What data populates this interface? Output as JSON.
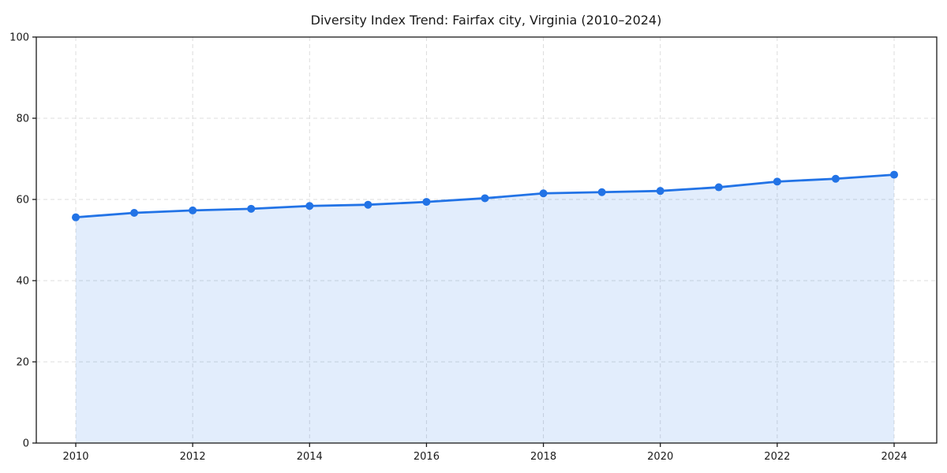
{
  "chart_data": {
    "type": "line",
    "title": "Diversity Index Trend: Fairfax city, Virginia (2010–2024)",
    "xlabel": "",
    "ylabel": "",
    "x": [
      2010,
      2011,
      2012,
      2013,
      2014,
      2015,
      2016,
      2017,
      2018,
      2019,
      2020,
      2021,
      2022,
      2023,
      2024
    ],
    "series": [
      {
        "name": "Diversity Index",
        "values": [
          55.6,
          56.7,
          57.3,
          57.7,
          58.4,
          58.7,
          59.4,
          60.3,
          61.5,
          61.8,
          62.1,
          63.0,
          64.4,
          65.1,
          66.1
        ]
      }
    ],
    "ylim": [
      0,
      100
    ],
    "yticks": [
      0,
      20,
      40,
      60,
      80,
      100
    ],
    "xticks": [
      2010,
      2012,
      2014,
      2016,
      2018,
      2020,
      2022,
      2024
    ],
    "grid": "dashed horizontal and vertical",
    "legend": "none",
    "area_fill_under_line": true,
    "markers": "filled circles",
    "colors": {
      "line": "#2273e6",
      "marker": "#2273e6",
      "fill": "rgba(34,115,230,0.13)",
      "grid": "#dcdcdc",
      "spine": "#1a1a1a",
      "text": "#1a1a1a",
      "background": "#ffffff"
    }
  }
}
